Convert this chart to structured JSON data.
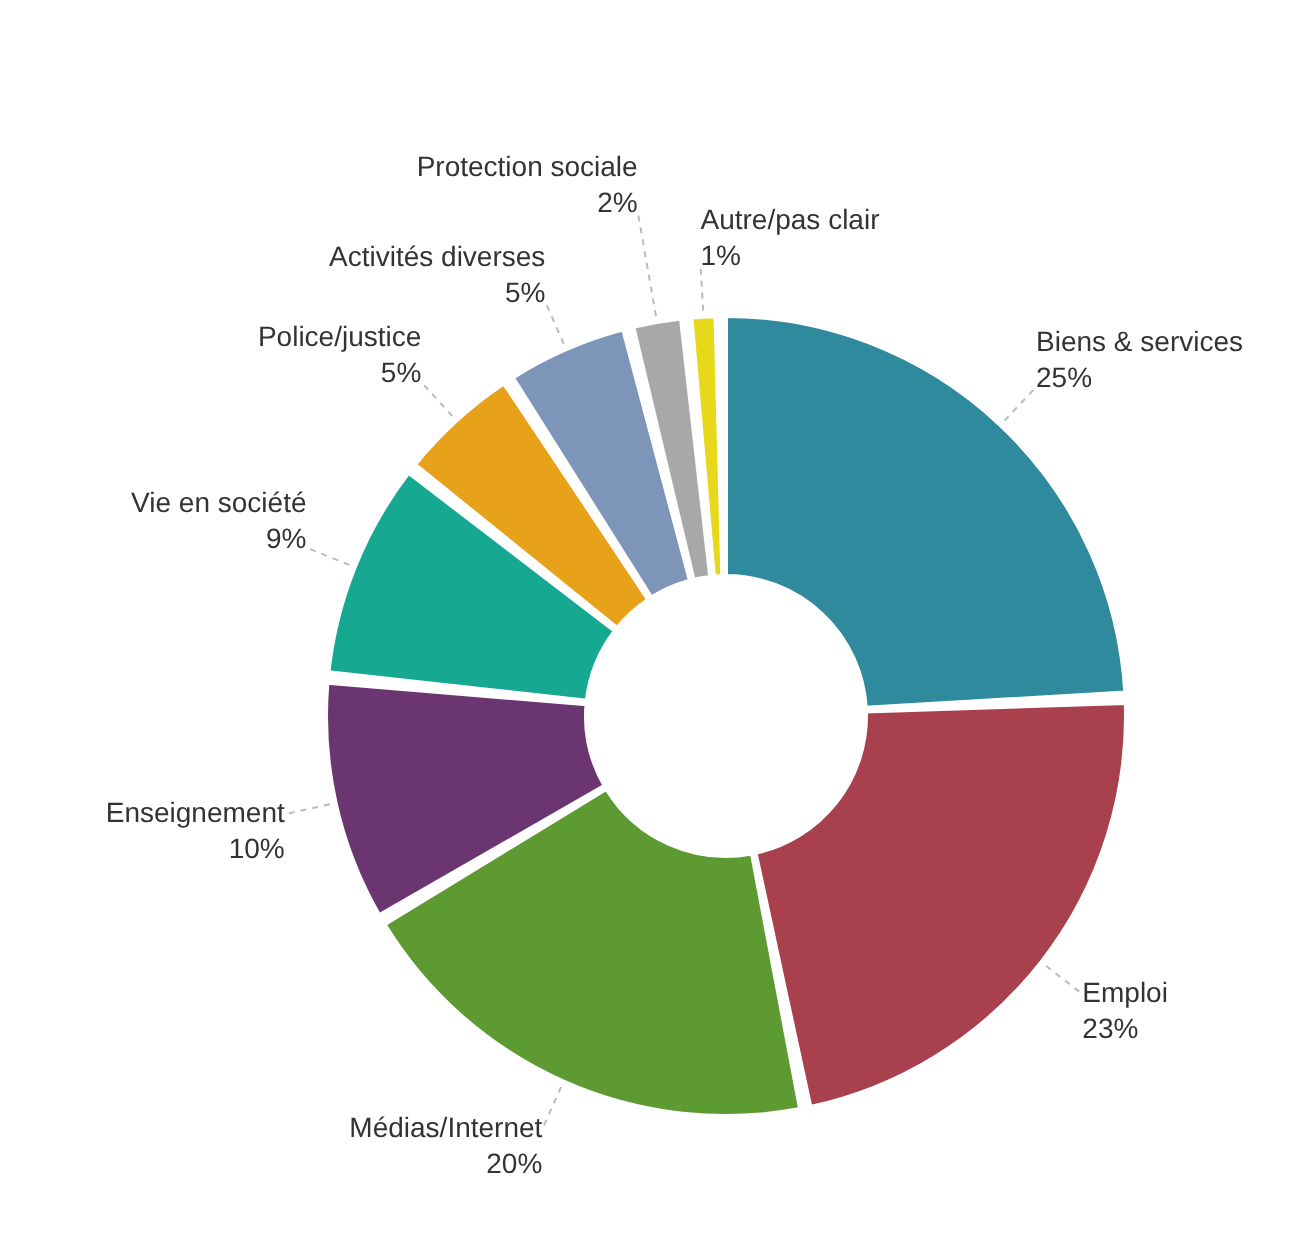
{
  "chart_data": {
    "type": "donut",
    "categories": [
      "Biens & services",
      "Emploi",
      "Médias/Internet",
      "Enseignement",
      "Vie en société",
      "Police/justice",
      "Activités diverses",
      "Protection sociale",
      "Autre/pas clair"
    ],
    "values": [
      25,
      23,
      20,
      10,
      9,
      5,
      5,
      2,
      1
    ],
    "colors": [
      "#2f8a9e",
      "#a8404e",
      "#5e9a32",
      "#6a3570",
      "#17a892",
      "#e8a21a",
      "#7d95b8",
      "#a8a8a8",
      "#e8d81a"
    ],
    "value_labels": [
      "25%",
      "23%",
      "20%",
      "10%",
      "9%",
      "5%",
      "5%",
      "2%",
      "1%"
    ]
  }
}
